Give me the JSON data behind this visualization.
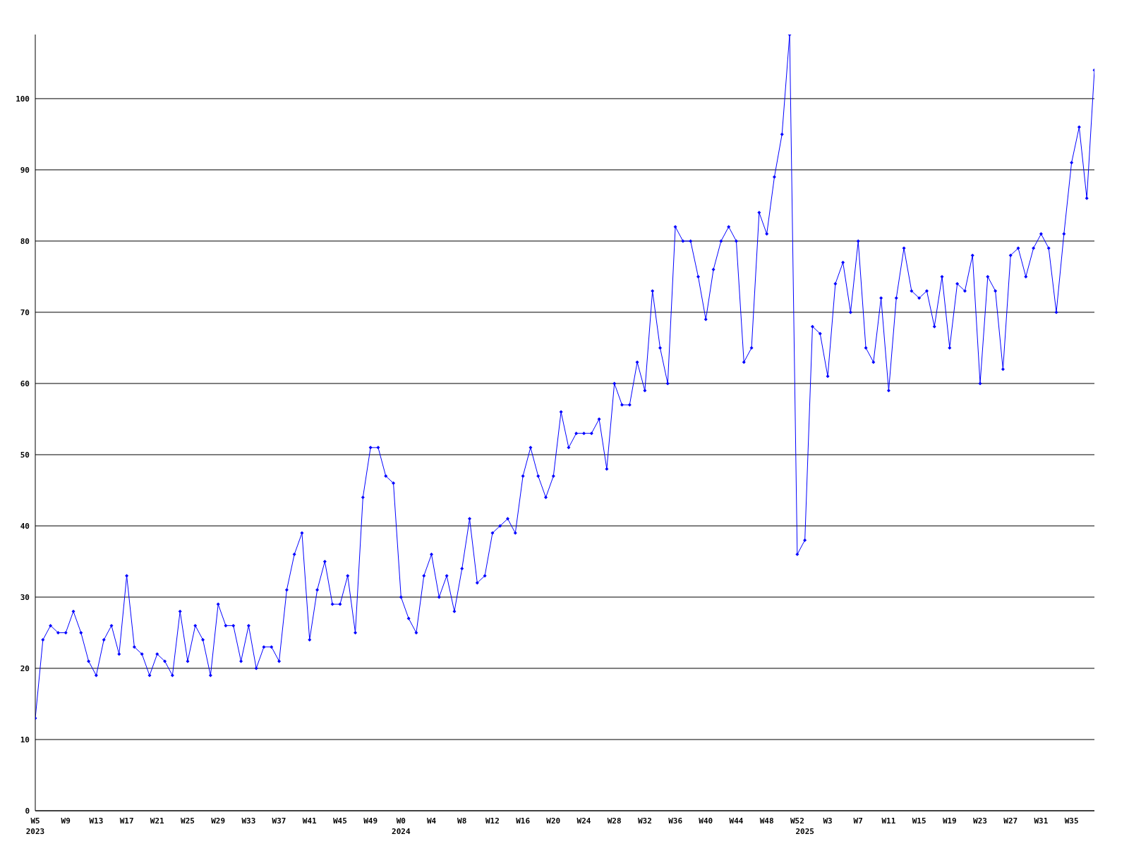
{
  "chart_data": {
    "type": "line",
    "categories": [
      "W5\n2023",
      null,
      null,
      null,
      "W9",
      null,
      null,
      null,
      "W13",
      null,
      null,
      null,
      "W17",
      null,
      null,
      null,
      "W21",
      null,
      null,
      null,
      "W25",
      null,
      null,
      null,
      "W29",
      null,
      null,
      null,
      "W33",
      null,
      null,
      null,
      "W37",
      null,
      null,
      null,
      "W41",
      null,
      null,
      null,
      "W45",
      null,
      null,
      null,
      "W49",
      null,
      null,
      null,
      "W0\n2024",
      null,
      null,
      null,
      "W4",
      null,
      null,
      null,
      "W8",
      null,
      null,
      null,
      "W12",
      null,
      null,
      null,
      "W16",
      null,
      null,
      null,
      "W20",
      null,
      null,
      null,
      "W24",
      null,
      null,
      null,
      "W28",
      null,
      null,
      null,
      "W32",
      null,
      null,
      null,
      "W36",
      null,
      null,
      null,
      "W40",
      null,
      null,
      null,
      "W44",
      null,
      null,
      null,
      "W48",
      null,
      null,
      null,
      "W52",
      "\n2025",
      null,
      null,
      "W3",
      null,
      null,
      null,
      "W7",
      null,
      null,
      null,
      "W11",
      null,
      null,
      null,
      "W15",
      null,
      null,
      null,
      "W19",
      null,
      null,
      null,
      "W23",
      null,
      null,
      null,
      "W27",
      null,
      null,
      null,
      "W31",
      null,
      null,
      null,
      "W35",
      null,
      null,
      null
    ],
    "series": [
      {
        "color": "#0000ff",
        "values": [
          13,
          24,
          26,
          25,
          25,
          28,
          25,
          21,
          19,
          24,
          26,
          22,
          33,
          23,
          22,
          19,
          22,
          21,
          19,
          28,
          21,
          26,
          24,
          19,
          29,
          26,
          26,
          21,
          26,
          20,
          23,
          23,
          21,
          31,
          36,
          39,
          24,
          31,
          35,
          29,
          29,
          33,
          25,
          44,
          51,
          51,
          47,
          46,
          30,
          27,
          25,
          33,
          36,
          30,
          33,
          28,
          34,
          41,
          32,
          33,
          39,
          40,
          41,
          39,
          47,
          51,
          47,
          44,
          47,
          56,
          51,
          53,
          53,
          53,
          55,
          48,
          60,
          57,
          57,
          63,
          59,
          73,
          65,
          60,
          82,
          80,
          80,
          75,
          69,
          76,
          80,
          82,
          80,
          63,
          65,
          84,
          81,
          89,
          95,
          109,
          36,
          38,
          68,
          67,
          61,
          74,
          77,
          70,
          80,
          65,
          63,
          72,
          59,
          72,
          79,
          73,
          72,
          73,
          68,
          75,
          65,
          74,
          73,
          78,
          60,
          75,
          73,
          62,
          78,
          79,
          75,
          79,
          81,
          79,
          70,
          81,
          91,
          96,
          86,
          104
        ]
      }
    ],
    "ylim": [
      0,
      109
    ],
    "yticks": [
      0,
      10,
      20,
      30,
      40,
      50,
      60,
      70,
      80,
      90,
      100
    ],
    "grid": "y",
    "marker": "diamond",
    "line_style": "solid"
  }
}
